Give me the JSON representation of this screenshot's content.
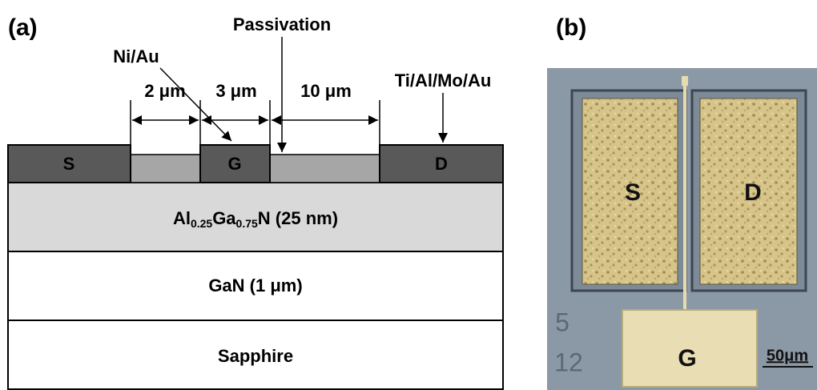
{
  "panel_a": {
    "label": "(a)",
    "annotations": {
      "gate_metal": "Ni/Au",
      "passivation": "Passivation",
      "ohmic_metal": "Ti/Al/Mo/Au"
    },
    "dimensions": [
      "2 μm",
      "3 μm",
      "10 μm"
    ],
    "contacts": [
      "S",
      "G",
      "D"
    ],
    "layers": {
      "barrier": [
        "Al",
        "0.25",
        "Ga",
        "0.75",
        "N (25 nm)"
      ],
      "channel": "GaN (1 μm)",
      "substrate": "Sapphire"
    }
  },
  "panel_b": {
    "label": "(b)",
    "pads": [
      "S",
      "D",
      "G"
    ],
    "marks": [
      "5",
      "12"
    ],
    "scale_bar": "50μm"
  }
}
